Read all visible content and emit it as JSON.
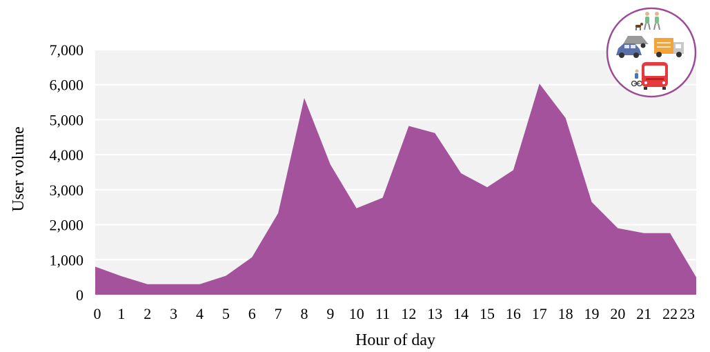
{
  "chart_data": {
    "type": "area",
    "xlabel": "Hour of day",
    "ylabel": "User volume",
    "x": [
      0,
      1,
      2,
      3,
      4,
      5,
      6,
      7,
      8,
      9,
      10,
      11,
      12,
      13,
      14,
      15,
      16,
      17,
      18,
      19,
      20,
      21,
      22,
      23
    ],
    "x_tick_labels": [
      "0",
      "1",
      "2",
      "3",
      "4",
      "5",
      "6",
      "7",
      "8",
      "9",
      "10",
      "11",
      "12",
      "13",
      "14",
      "15",
      "16",
      "17",
      "18",
      "19",
      "20",
      "21",
      "22",
      "23"
    ],
    "values": [
      800,
      530,
      300,
      300,
      300,
      540,
      1070,
      2330,
      5620,
      3720,
      2470,
      2770,
      4820,
      4620,
      3470,
      3070,
      3560,
      6030,
      5050,
      2650,
      1900,
      1760,
      1760,
      500
    ],
    "ylim": [
      0,
      7000
    ],
    "y_ticks": [
      0,
      1000,
      2000,
      3000,
      4000,
      5000,
      6000,
      7000
    ],
    "y_tick_labels": [
      "0",
      "1,000",
      "2,000",
      "3,000",
      "4,000",
      "5,000",
      "6,000",
      "7,000"
    ],
    "grid": true,
    "colors": {
      "area": "#a4529c",
      "plot_background": "#f2f2f2",
      "gridline": "#ffffff",
      "badge_border": "#9b4a95"
    },
    "icons": [
      "pedestrians-icon",
      "car-icon",
      "truck-icon",
      "cyclist-icon",
      "bus-icon"
    ]
  }
}
